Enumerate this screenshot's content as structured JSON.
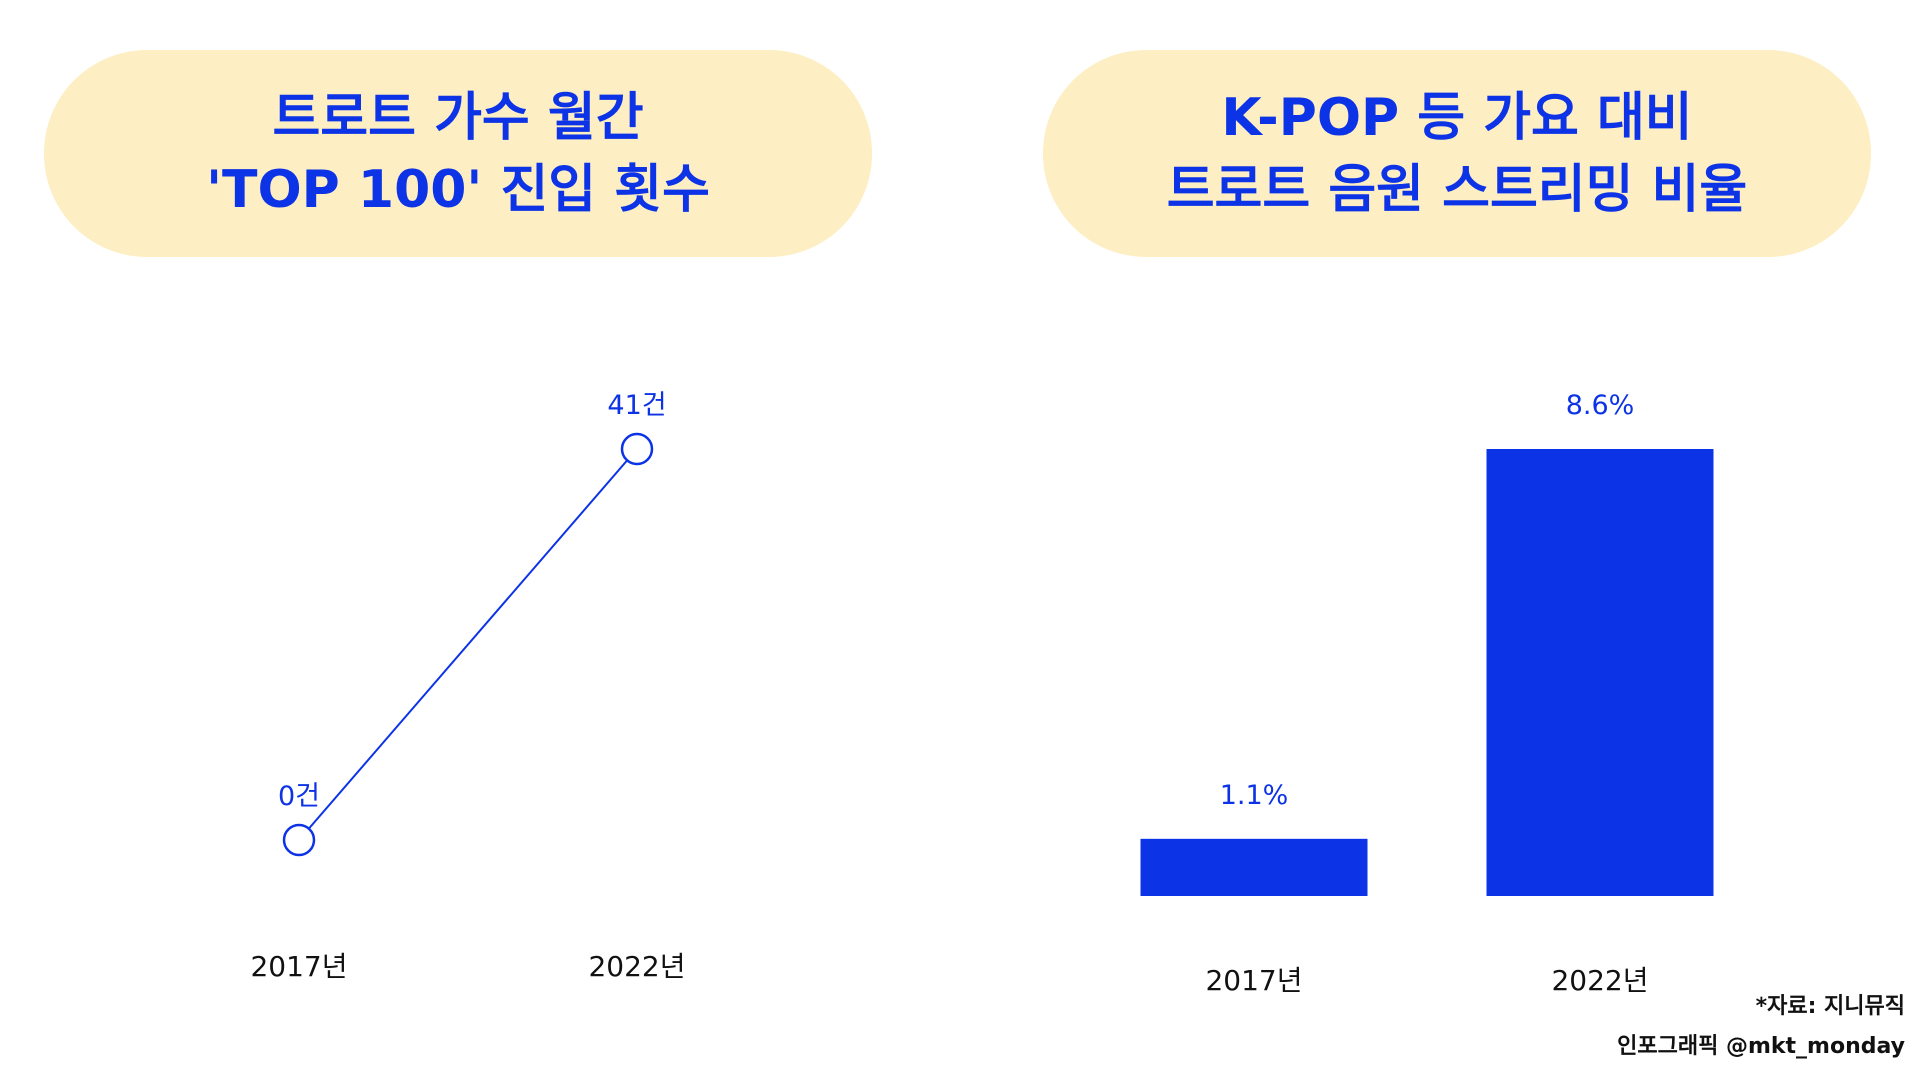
{
  "colors": {
    "accent": "#0d33e6",
    "pill_bg": "#fdeec3",
    "text": "#111111"
  },
  "chart_data": [
    {
      "type": "line",
      "title_lines": [
        "트로트 가수 월간",
        "'TOP 100' 진입 횟수"
      ],
      "categories": [
        "2017년",
        "2022년"
      ],
      "values": [
        0,
        41
      ],
      "value_labels": [
        "0건",
        "41건"
      ],
      "ylim": [
        0,
        41
      ],
      "grid": false
    },
    {
      "type": "bar",
      "title_lines": [
        "K-POP 등 가요 대비",
        "트로트 음원 스트리밍 비율"
      ],
      "categories": [
        "2017년",
        "2022년"
      ],
      "values": [
        1.1,
        8.6
      ],
      "value_labels": [
        "1.1%",
        "8.6%"
      ],
      "ylim": [
        0,
        8.6
      ],
      "grid": false
    }
  ],
  "source": "*자료: 지니뮤직",
  "credit": "인포그래픽 @mkt_monday"
}
